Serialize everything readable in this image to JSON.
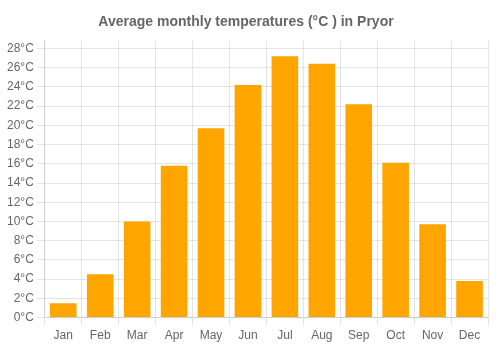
{
  "chart_data": {
    "type": "bar",
    "title": "Average monthly temperatures (°C ) in Pryor",
    "categories": [
      "Jan",
      "Feb",
      "Mar",
      "Apr",
      "May",
      "Jun",
      "Jul",
      "Aug",
      "Sep",
      "Oct",
      "Nov",
      "Dec"
    ],
    "values": [
      1.5,
      4.5,
      10.0,
      15.8,
      19.7,
      24.2,
      27.2,
      26.4,
      22.2,
      16.1,
      9.7,
      3.8
    ],
    "color": "#FFA500",
    "ylim": [
      0,
      28.8
    ],
    "yticks": [
      {
        "value": 0,
        "label": "0°C"
      },
      {
        "value": 2,
        "label": "2°C"
      },
      {
        "value": 4,
        "label": "4°C"
      },
      {
        "value": 6,
        "label": "6°C"
      },
      {
        "value": 8,
        "label": "8°C"
      },
      {
        "value": 10,
        "label": "10°C"
      },
      {
        "value": 12,
        "label": "12°C"
      },
      {
        "value": 14,
        "label": "14°C"
      },
      {
        "value": 16,
        "label": "16°C"
      },
      {
        "value": 18,
        "label": "18°C"
      },
      {
        "value": 20,
        "label": "20°C"
      },
      {
        "value": 22,
        "label": "22°C"
      },
      {
        "value": 24,
        "label": "24°C"
      },
      {
        "value": 26,
        "label": "26°C"
      },
      {
        "value": 28,
        "label": "28°C"
      }
    ],
    "grid": true
  }
}
